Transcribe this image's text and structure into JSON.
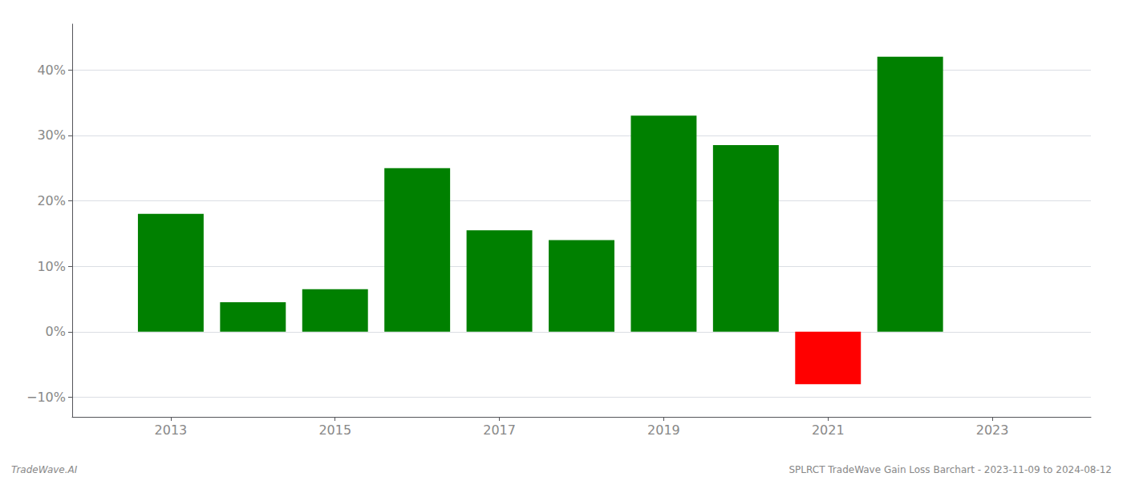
{
  "chart_data": {
    "type": "bar",
    "x": [
      2013,
      2014,
      2015,
      2016,
      2017,
      2018,
      2019,
      2020,
      2021,
      2022
    ],
    "values": [
      18.0,
      4.5,
      6.5,
      25.0,
      15.5,
      14.0,
      33.0,
      28.5,
      -8.0,
      42.0
    ],
    "colors": [
      "#008000",
      "#008000",
      "#008000",
      "#008000",
      "#008000",
      "#008000",
      "#008000",
      "#008000",
      "#ff0000",
      "#008000"
    ],
    "xlim": [
      2011.8,
      2024.2
    ],
    "xticks": [
      2013,
      2015,
      2017,
      2019,
      2021,
      2023
    ],
    "ylim": [
      -13,
      47
    ],
    "yticks": [
      {
        "value": -10,
        "label": "−10%"
      },
      {
        "value": 0,
        "label": "0%"
      },
      {
        "value": 10,
        "label": "10%"
      },
      {
        "value": 20,
        "label": "20%"
      },
      {
        "value": 30,
        "label": "30%"
      },
      {
        "value": 40,
        "label": "40%"
      }
    ],
    "grid": true,
    "annotations": [
      "TradeWave.AI",
      "SPLRCT TradeWave Gain Loss Barchart - 2023-11-09 to 2024-08-12"
    ]
  }
}
